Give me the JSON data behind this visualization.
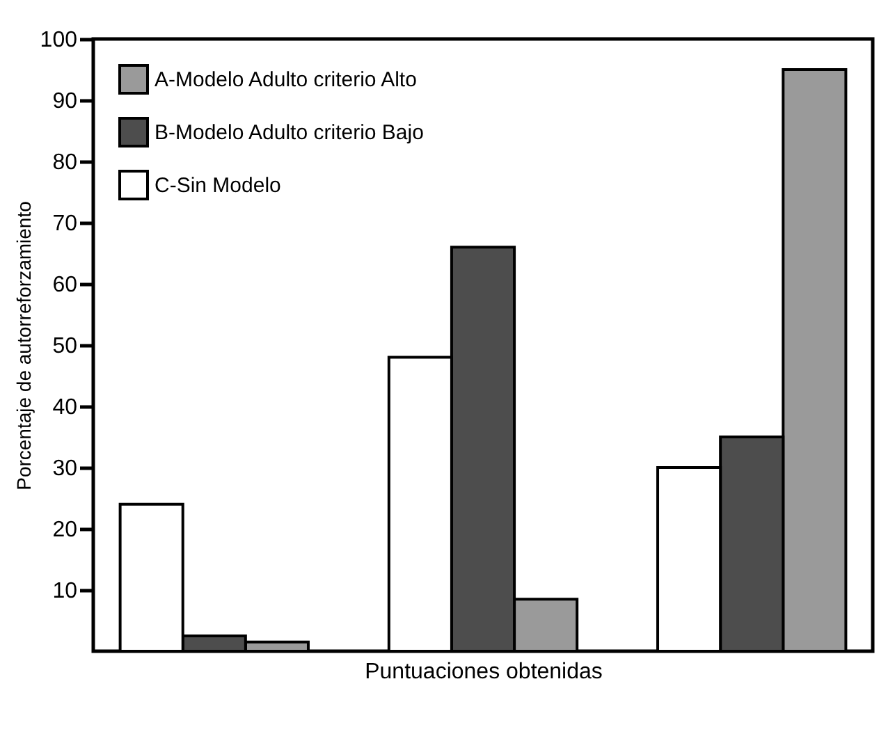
{
  "chart_data": {
    "type": "bar",
    "xlabel": "Puntuaciones obtenidas",
    "ylabel": "Porcentaje de autorreforzamiento",
    "categories": [
      null,
      null,
      null
    ],
    "series": [
      {
        "name": "A-Modelo Adulto criterio Alto",
        "color": "#9a9a9a",
        "values": [
          1.5,
          8.5,
          95
        ]
      },
      {
        "name": "B-Modelo Adulto criterio Bajo",
        "color": "#4d4d4d",
        "values": [
          2.5,
          66,
          35
        ]
      },
      {
        "name": "C-Sin Modelo",
        "color": "#ffffff",
        "values": [
          24,
          48,
          30
        ]
      }
    ],
    "ylim": [
      0,
      100
    ],
    "yticks": [
      10,
      20,
      30,
      40,
      50,
      60,
      70,
      80,
      90,
      100
    ],
    "grid": false,
    "legend": "top left"
  }
}
